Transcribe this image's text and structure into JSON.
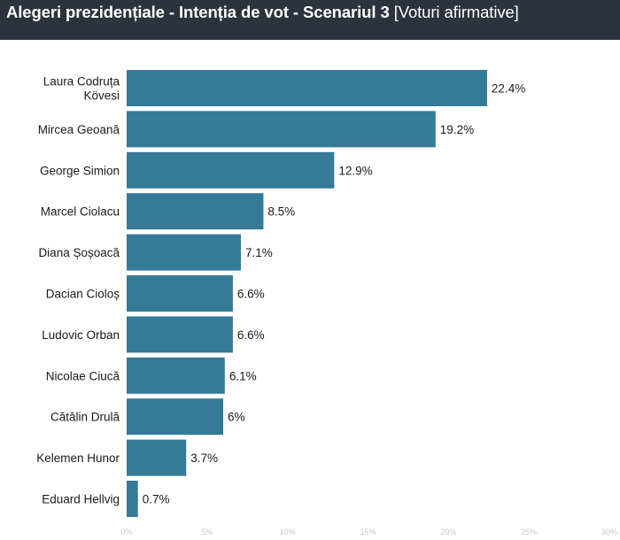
{
  "header": {
    "title_main": "Alegeri prezidențiale - Intenția de vot - Scenariul 3",
    "title_sub": "[Voturi afirmative]"
  },
  "colors": {
    "bar": "#357a96",
    "header_bg": "#2d333c"
  },
  "chart_data": {
    "type": "bar",
    "orientation": "horizontal",
    "categories": [
      [
        "Laura Codruța",
        "Kövesi"
      ],
      [
        "Mircea Geoană"
      ],
      [
        "George Simion"
      ],
      [
        "Marcel Ciolacu"
      ],
      [
        "Diana Șoșoacă"
      ],
      [
        "Dacian Cioloș"
      ],
      [
        "Ludovic Orban"
      ],
      [
        "Nicolae Ciucă"
      ],
      [
        "Cătălin Drulă"
      ],
      [
        "Kelemen Hunor"
      ],
      [
        "Eduard Hellvig"
      ]
    ],
    "values": [
      22.4,
      19.2,
      12.9,
      8.5,
      7.1,
      6.6,
      6.6,
      6.1,
      6,
      3.7,
      0.7
    ],
    "value_labels": [
      "22.4%",
      "19.2%",
      "12.9%",
      "8.5%",
      "7.1%",
      "6.6%",
      "6.6%",
      "6.1%",
      "6%",
      "3.7%",
      "0.7%"
    ],
    "xlim": [
      0,
      30
    ],
    "xticks": [
      0,
      5,
      10,
      15,
      20,
      25,
      30
    ],
    "xtick_labels": [
      "0%",
      "5%",
      "10%",
      "15%",
      "20%",
      "25%",
      "30%"
    ],
    "grid": false,
    "legend": "none"
  }
}
